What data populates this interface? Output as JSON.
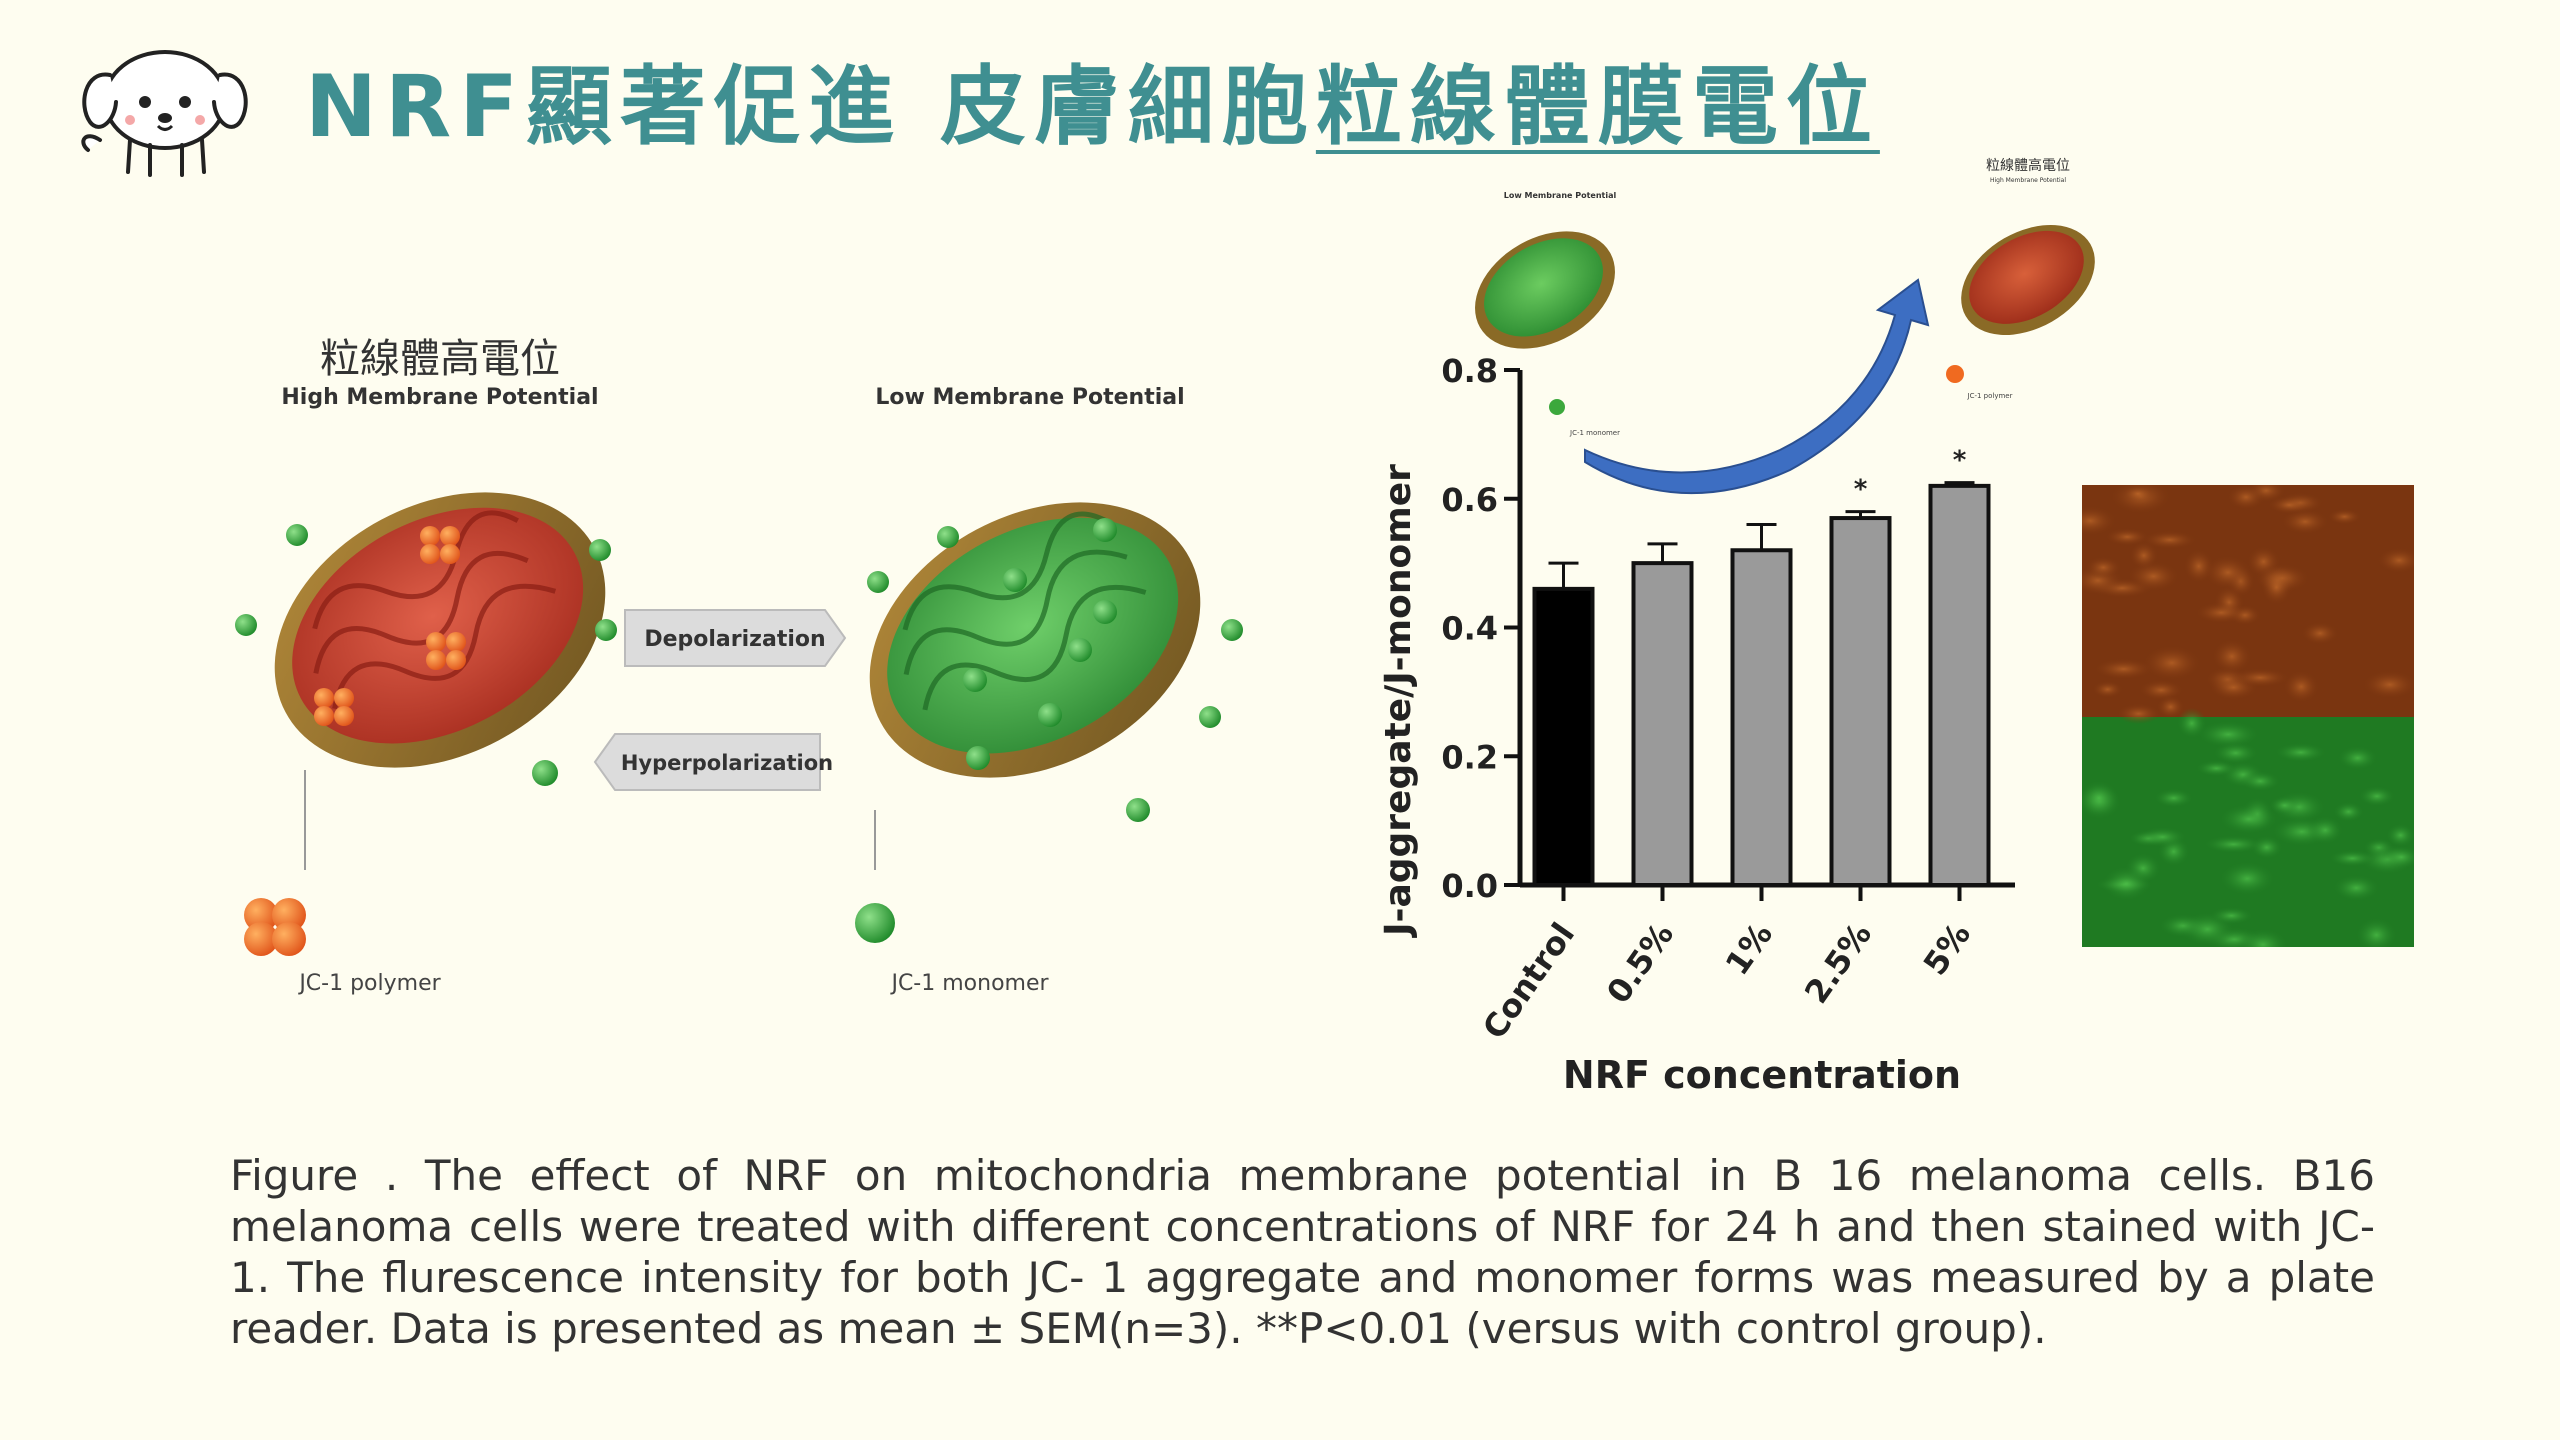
{
  "slide": {
    "title_main": "NRF顯著促進  皮膚細胞",
    "title_underlined": "粒線體膜電位",
    "caption": "Figure . The effect of NRF on mitochondria membrane potential in B 16 melanoma cells. B16 melanoma cells were treated with different concentrations of NRF for 24 h and then stained with JC-1. The flurescence intensity for both JC- 1 aggregate and monomer forms was measured by a plate reader. Data is presented as mean ± SEM(n=3).  **P<0.01 (versus with control group)."
  },
  "illustration": {
    "high_label_zh": "粒線體高電位",
    "high_label_en": "High Membrane Potential",
    "low_label_en": "Low Membrane Potential",
    "arrow_depolarization": "Depolarization",
    "arrow_hyperpolarization": "Hyperpolarization",
    "polymer_label": "JC-1 polymer",
    "monomer_label": "JC-1 monomer"
  },
  "inset": {
    "low_label": "Low Membrane Potential",
    "high_label_zh": "粒線體高電位",
    "high_label_en": "High Membrane Potential",
    "monomer_label": "JC-1 monomer",
    "polymer_label": "JC-1 polymer"
  },
  "chart_data": {
    "type": "bar",
    "categories": [
      "Control",
      "0.5%",
      "1%",
      "2.5%",
      "5%"
    ],
    "values": [
      0.46,
      0.5,
      0.52,
      0.57,
      0.62
    ],
    "errors": [
      0.04,
      0.03,
      0.04,
      0.01,
      0.005
    ],
    "significance": [
      "",
      "",
      "",
      "*",
      "*"
    ],
    "bar_colors": [
      "#000000",
      "#9a9a9a",
      "#9a9a9a",
      "#9a9a9a",
      "#9a9a9a"
    ],
    "xlabel": "NRF concentration",
    "ylabel": "J-aggregate/J-monomer",
    "ylim": [
      0,
      0.8
    ],
    "yticks": [
      "0.0",
      "0.2",
      "0.4",
      "0.6",
      "0.8"
    ],
    "grid": false
  },
  "micrograph": {
    "top_color": "#7a3510",
    "bottom_color": "#1f7a22"
  },
  "colors": {
    "title": "#3f8f91",
    "background": "#fefdf0",
    "red_mito": "#c2402b",
    "green_mito": "#3c9a3c",
    "mito_shell": "#9a7a2a"
  }
}
